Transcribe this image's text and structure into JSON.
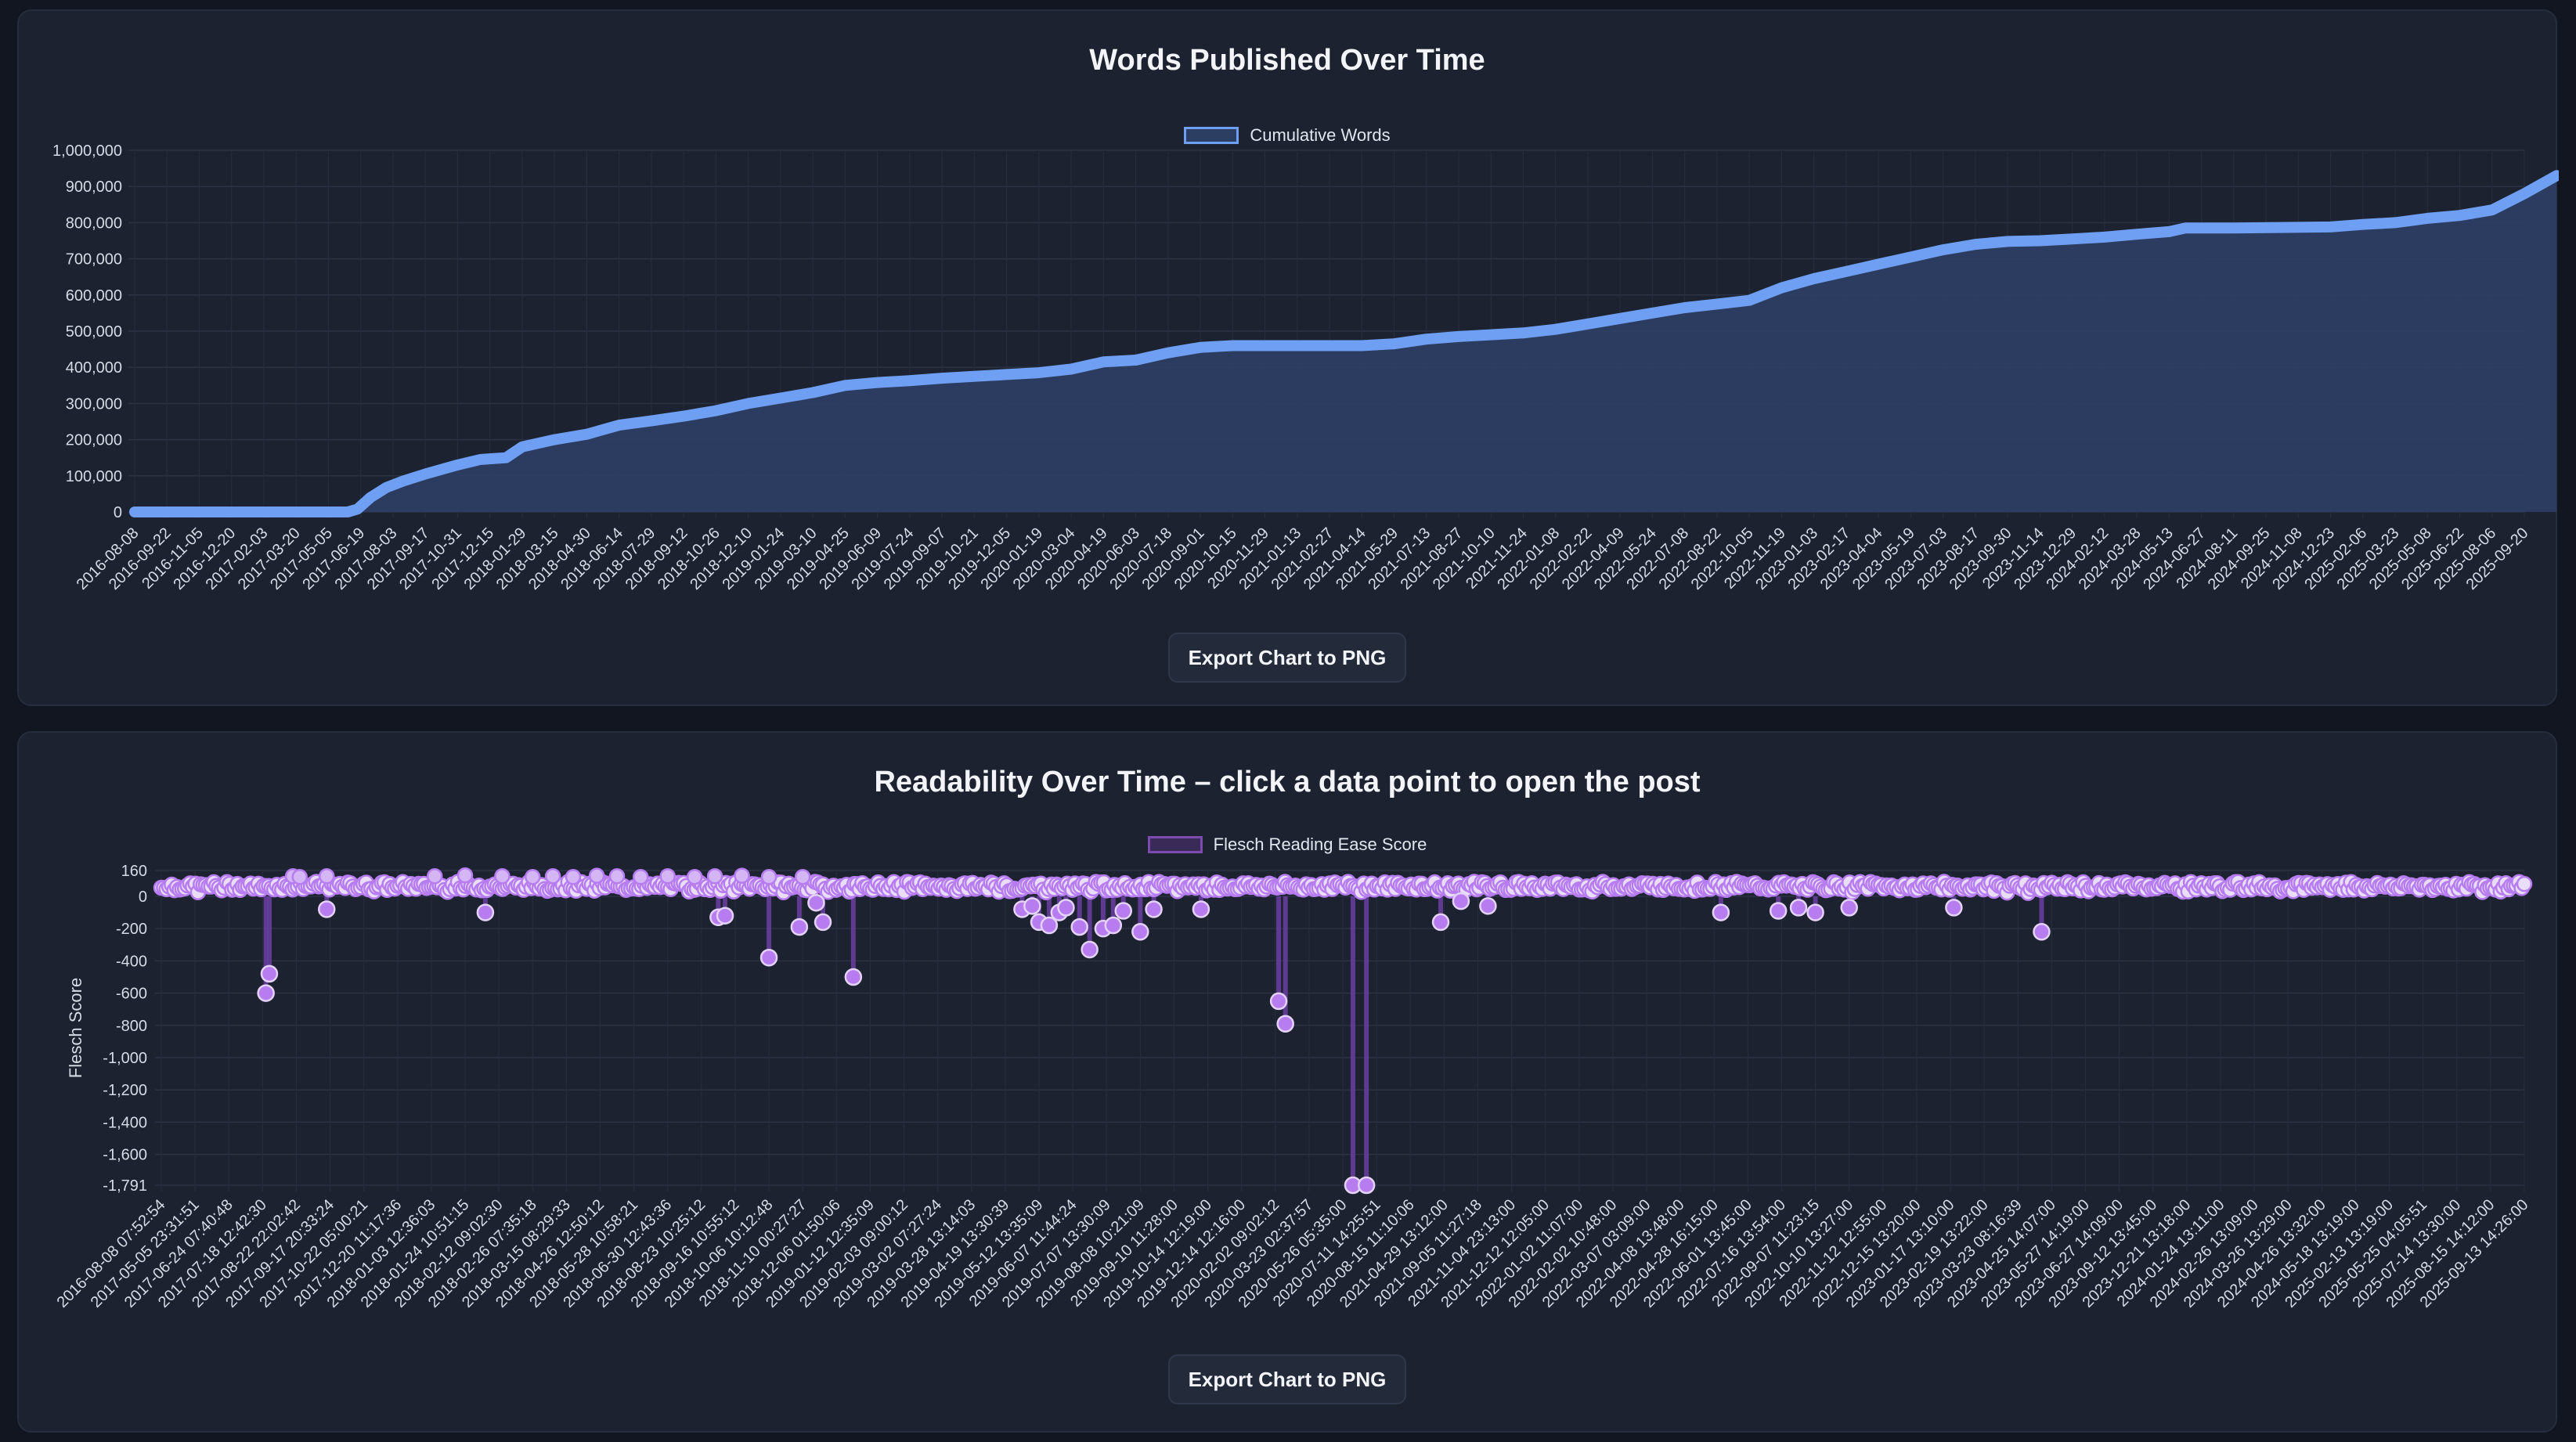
{
  "chart_data": [
    {
      "type": "area",
      "title": "Words Published Over Time",
      "legend": [
        "Cumulative Words"
      ],
      "xlabel": "",
      "ylabel": "",
      "ylim": [
        0,
        1000000
      ],
      "yticks": [
        "1,000,000",
        "900,000",
        "800,000",
        "700,000",
        "600,000",
        "500,000",
        "400,000",
        "300,000",
        "200,000",
        "100,000",
        "0"
      ],
      "categories": [
        "2016-08-08",
        "2016-09-22",
        "2016-11-05",
        "2016-12-20",
        "2017-02-03",
        "2017-03-20",
        "2017-05-05",
        "2017-06-19",
        "2017-08-03",
        "2017-09-17",
        "2017-10-31",
        "2017-12-15",
        "2018-01-29",
        "2018-03-15",
        "2018-04-30",
        "2018-06-14",
        "2018-07-29",
        "2018-09-12",
        "2018-10-26",
        "2018-12-10",
        "2019-01-24",
        "2019-03-10",
        "2019-04-25",
        "2019-06-09",
        "2019-07-24",
        "2019-09-07",
        "2019-10-21",
        "2019-12-05",
        "2020-01-19",
        "2020-03-04",
        "2020-04-19",
        "2020-06-03",
        "2020-07-18",
        "2020-09-01",
        "2020-10-15",
        "2020-11-29",
        "2021-01-13",
        "2021-02-27",
        "2021-04-14",
        "2021-05-29",
        "2021-07-13",
        "2021-08-27",
        "2021-10-10",
        "2021-11-24",
        "2022-01-08",
        "2022-02-22",
        "2022-04-09",
        "2022-05-24",
        "2022-07-08",
        "2022-08-22",
        "2022-10-05",
        "2022-11-19",
        "2023-01-03",
        "2023-02-17",
        "2023-04-04",
        "2023-05-19",
        "2023-07-03",
        "2023-08-17",
        "2023-09-30",
        "2023-11-14",
        "2023-12-29",
        "2024-02-12",
        "2024-03-28",
        "2024-05-13",
        "2024-06-27",
        "2024-08-11",
        "2024-09-25",
        "2024-11-08",
        "2024-12-23",
        "2025-02-06",
        "2025-03-23",
        "2025-05-08",
        "2025-06-22",
        "2025-08-06",
        "2025-09-20"
      ],
      "series": [
        {
          "name": "Cumulative Words",
          "points": [
            [
              0,
              0
            ],
            [
              6.6,
              0
            ],
            [
              6.9,
              8000
            ],
            [
              7.3,
              40000
            ],
            [
              7.8,
              68000
            ],
            [
              8.3,
              85000
            ],
            [
              9.0,
              105000
            ],
            [
              10.0,
              130000
            ],
            [
              10.7,
              145000
            ],
            [
              11.5,
              150000
            ],
            [
              12.0,
              180000
            ],
            [
              13.0,
              200000
            ],
            [
              14.0,
              215000
            ],
            [
              15.0,
              240000
            ],
            [
              16.0,
              252000
            ],
            [
              17.0,
              265000
            ],
            [
              18.0,
              280000
            ],
            [
              19.0,
              300000
            ],
            [
              20.0,
              315000
            ],
            [
              21.0,
              330000
            ],
            [
              22.0,
              350000
            ],
            [
              23.0,
              358000
            ],
            [
              24.0,
              363000
            ],
            [
              25.0,
              370000
            ],
            [
              26.0,
              375000
            ],
            [
              27.0,
              380000
            ],
            [
              28.0,
              385000
            ],
            [
              29.0,
              395000
            ],
            [
              30.0,
              415000
            ],
            [
              31.0,
              420000
            ],
            [
              32.0,
              440000
            ],
            [
              33.0,
              455000
            ],
            [
              34.0,
              460000
            ],
            [
              35.0,
              460000
            ],
            [
              36.0,
              460000
            ],
            [
              37.0,
              460000
            ],
            [
              38.0,
              460000
            ],
            [
              39.0,
              465000
            ],
            [
              40.0,
              478000
            ],
            [
              41.0,
              485000
            ],
            [
              42.0,
              490000
            ],
            [
              43.0,
              495000
            ],
            [
              44.0,
              505000
            ],
            [
              45.0,
              520000
            ],
            [
              46.0,
              535000
            ],
            [
              47.0,
              550000
            ],
            [
              48.0,
              565000
            ],
            [
              49.0,
              575000
            ],
            [
              50.0,
              585000
            ],
            [
              51.0,
              620000
            ],
            [
              52.0,
              645000
            ],
            [
              53.0,
              665000
            ],
            [
              54.0,
              685000
            ],
            [
              55.0,
              705000
            ],
            [
              56.0,
              725000
            ],
            [
              57.0,
              740000
            ],
            [
              58.0,
              748000
            ],
            [
              59.0,
              750000
            ],
            [
              60.0,
              755000
            ],
            [
              61.0,
              760000
            ],
            [
              62.0,
              768000
            ],
            [
              63.0,
              775000
            ],
            [
              63.5,
              785000
            ],
            [
              65.0,
              785000
            ],
            [
              68.0,
              788000
            ],
            [
              69.0,
              795000
            ],
            [
              70.0,
              800000
            ],
            [
              71.0,
              812000
            ],
            [
              72.0,
              820000
            ],
            [
              73.0,
              835000
            ],
            [
              74.0,
              880000
            ],
            [
              75.0,
              930000
            ]
          ]
        }
      ]
    },
    {
      "type": "scatter",
      "title": "Readability Over Time – click a data point to open the post",
      "legend": [
        "Flesch Reading Ease Score"
      ],
      "xlabel": "",
      "ylabel": "Flesch Score",
      "ylim": [
        -1791,
        160
      ],
      "yticks": [
        "160",
        "0",
        "-200",
        "-400",
        "-600",
        "-800",
        "-1,000",
        "-1,200",
        "-1,400",
        "-1,600",
        "-1,791"
      ],
      "categories": [
        "2016-08-08 07:52:54",
        "2017-05-05 23:31:51",
        "2017-06-24 07:40:48",
        "2017-07-18 12:42:30",
        "2017-08-22 22:02:42",
        "2017-09-17 20:33:24",
        "2017-10-22 05:00:21",
        "2017-12-20 11:17:36",
        "2018-01-03 12:36:03",
        "2018-01-24 10:51:15",
        "2018-02-12 09:02:30",
        "2018-02-26 07:35:18",
        "2018-03-15 08:29:33",
        "2018-04-26 12:50:12",
        "2018-05-28 10:58:21",
        "2018-06-30 12:43:36",
        "2018-08-23 10:25:12",
        "2018-09-16 10:55:12",
        "2018-10-06 10:12:48",
        "2018-11-10 00:27:27",
        "2018-12-06 01:50:06",
        "2019-01-12 12:35:09",
        "2019-02-03 09:00:12",
        "2019-03-02 07:27:24",
        "2019-03-28 13:14:03",
        "2019-04-19 13:30:39",
        "2019-05-12 13:35:09",
        "2019-06-07 11:44:24",
        "2019-07-07 13:30:09",
        "2019-08-08 10:21:09",
        "2019-09-10 11:28:00",
        "2019-10-14 12:19:00",
        "2019-12-14 12:16:00",
        "2020-02-02 09:02:12",
        "2020-03-23 02:37:57",
        "2020-05-26 05:35:00",
        "2020-07-11 14:25:51",
        "2020-08-15 11:10:06",
        "2021-04-29 13:12:00",
        "2021-09-05 11:27:18",
        "2021-11-04 23:13:00",
        "2021-12-12 12:05:00",
        "2022-01-02 11:07:00",
        "2022-02-02 10:48:00",
        "2022-03-07 03:09:00",
        "2022-04-08 13:48:00",
        "2022-04-28 16:15:00",
        "2022-06-01 13:45:00",
        "2022-07-16 13:54:00",
        "2022-09-07 11:23:15",
        "2022-10-10 13:27:00",
        "2022-11-12 12:55:00",
        "2022-12-15 13:20:00",
        "2023-01-17 13:10:00",
        "2023-02-19 13:22:00",
        "2023-03-23 08:16:39",
        "2023-04-25 14:07:00",
        "2023-05-27 14:19:00",
        "2023-06-27 14:09:00",
        "2023-09-12 13:45:00",
        "2023-12-21 13:18:00",
        "2024-01-24 13:11:00",
        "2024-02-26 13:09:00",
        "2024-03-26 13:29:00",
        "2024-04-26 13:32:00",
        "2024-05-18 13:19:00",
        "2025-02-13 13:19:00",
        "2025-05-25 04:05:51",
        "2025-07-14 13:30:00",
        "2025-08-15 14:12:00",
        "2025-09-13 14:26:00"
      ],
      "series": [
        {
          "name": "Flesch Reading Ease Score",
          "baseline_range": [
            40,
            90
          ],
          "outliers": [
            [
              3.1,
              -600
            ],
            [
              3.2,
              -480
            ],
            [
              4.9,
              -80
            ],
            [
              9.6,
              -100
            ],
            [
              16.5,
              -130
            ],
            [
              16.7,
              -120
            ],
            [
              18.0,
              -380
            ],
            [
              18.9,
              -190
            ],
            [
              19.4,
              -40
            ],
            [
              19.6,
              -160
            ],
            [
              20.5,
              -500
            ],
            [
              25.5,
              -80
            ],
            [
              25.8,
              -60
            ],
            [
              26.0,
              -160
            ],
            [
              26.3,
              -180
            ],
            [
              26.6,
              -100
            ],
            [
              26.8,
              -70
            ],
            [
              27.2,
              -190
            ],
            [
              27.5,
              -330
            ],
            [
              27.9,
              -200
            ],
            [
              28.2,
              -180
            ],
            [
              28.5,
              -90
            ],
            [
              29.0,
              -220
            ],
            [
              29.4,
              -80
            ],
            [
              30.8,
              -80
            ],
            [
              33.1,
              -650
            ],
            [
              33.3,
              -790
            ],
            [
              35.3,
              -1791
            ],
            [
              35.7,
              -1791
            ],
            [
              37.9,
              -160
            ],
            [
              38.5,
              -30
            ],
            [
              39.3,
              -60
            ],
            [
              46.2,
              -100
            ],
            [
              47.9,
              -90
            ],
            [
              48.5,
              -70
            ],
            [
              49.0,
              -100
            ],
            [
              50.0,
              -70
            ],
            [
              53.1,
              -70
            ],
            [
              55.7,
              -220
            ]
          ],
          "highs": [
            [
              3.9,
              125
            ],
            [
              4.1,
              120
            ],
            [
              4.9,
              125
            ],
            [
              8.1,
              125
            ],
            [
              9.0,
              130
            ],
            [
              10.1,
              125
            ],
            [
              11.0,
              120
            ],
            [
              11.6,
              125
            ],
            [
              12.2,
              120
            ],
            [
              12.9,
              128
            ],
            [
              13.5,
              125
            ],
            [
              14.2,
              120
            ],
            [
              15.0,
              125
            ],
            [
              15.8,
              120
            ],
            [
              16.4,
              125
            ],
            [
              17.2,
              128
            ],
            [
              18.0,
              120
            ],
            [
              19.0,
              120
            ]
          ]
        }
      ]
    }
  ],
  "buttons": {
    "export_words": "Export Chart to PNG",
    "export_read": "Export Chart to PNG"
  },
  "colors": {
    "words_line": "#6f9ff2",
    "words_fill": "#2f4168",
    "read_point": "#b67cf0",
    "read_line": "#6a3fa1"
  }
}
